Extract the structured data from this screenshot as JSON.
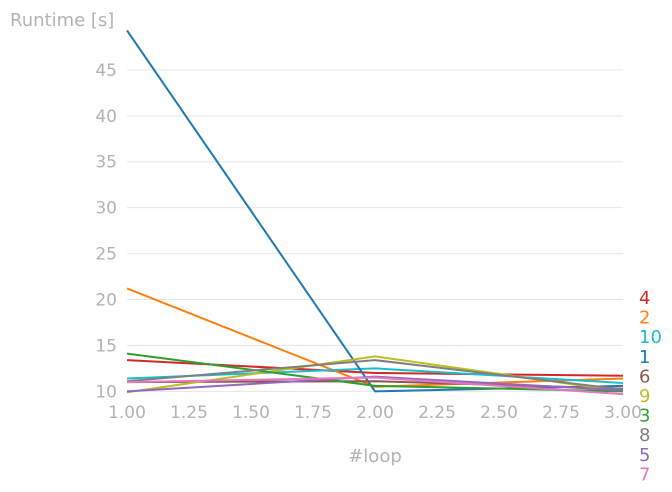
{
  "chart_data": {
    "type": "line",
    "ylabel": "Runtime [s]",
    "xlabel": "#loop",
    "x": [
      1,
      2,
      3
    ],
    "xticks": [
      "1.00",
      "1.25",
      "1.50",
      "1.75",
      "2.00",
      "2.25",
      "2.50",
      "2.75",
      "3.00"
    ],
    "yticks": [
      "10",
      "15",
      "20",
      "25",
      "30",
      "35",
      "40",
      "45"
    ],
    "xlim": [
      1,
      3
    ],
    "ylim": [
      9.6,
      50
    ],
    "grid": "horizontal",
    "legend_placement": "right",
    "series": [
      {
        "name": "4",
        "color": "#d62728",
        "values": [
          13.4,
          12.0,
          11.7
        ]
      },
      {
        "name": "2",
        "color": "#ff7f0e",
        "values": [
          21.2,
          10.5,
          11.4
        ]
      },
      {
        "name": "10",
        "color": "#17becf",
        "values": [
          11.4,
          12.5,
          10.9
        ]
      },
      {
        "name": "1",
        "color": "#1f77b4",
        "values": [
          49.3,
          10.0,
          10.6
        ]
      },
      {
        "name": "6",
        "color": "#8c564b",
        "values": [
          11.0,
          11.1,
          10.3
        ]
      },
      {
        "name": "9",
        "color": "#bcbd22",
        "values": [
          9.9,
          13.8,
          10.0
        ]
      },
      {
        "name": "3",
        "color": "#2ca02c",
        "values": [
          14.1,
          10.6,
          10.0
        ]
      },
      {
        "name": "8",
        "color": "#7f7f7f",
        "values": [
          11.1,
          13.4,
          10.2
        ]
      },
      {
        "name": "5",
        "color": "#9467bd",
        "values": [
          10.0,
          11.6,
          10.1
        ]
      },
      {
        "name": "7",
        "color": "#e377c2",
        "values": [
          11.0,
          11.5,
          9.7
        ]
      }
    ]
  }
}
